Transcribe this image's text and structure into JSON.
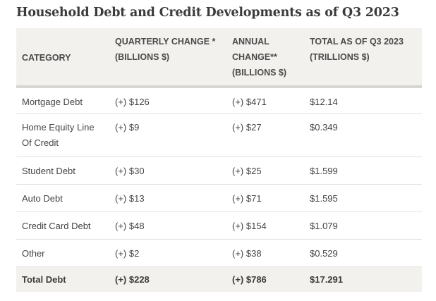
{
  "title": "Household Debt and Credit Developments as of Q3 2023",
  "headers": {
    "category": "CATEGORY",
    "quarterly_line1": "QUARTERLY CHANGE *",
    "quarterly_line2": "(BILLIONS $)",
    "annual_line1": "ANNUAL",
    "annual_line2": "CHANGE**",
    "annual_line3": "(BILLIONS $)",
    "total_line1": "TOTAL AS OF Q3 2023",
    "total_line2": "(TRILLIONS $)"
  },
  "rows": [
    {
      "category_line1": "Mortgage Debt",
      "category_line2": "",
      "quarterly": "(+) $126",
      "annual": "(+) $471",
      "total": "$12.14"
    },
    {
      "category_line1": "Home Equity Line",
      "category_line2": "Of Credit",
      "quarterly": "(+) $9",
      "annual": "(+) $27",
      "total": "$0.349"
    },
    {
      "category_line1": "Student Debt",
      "category_line2": "",
      "quarterly": "(+) $30",
      "annual": "(+) $25",
      "total": "$1.599"
    },
    {
      "category_line1": "Auto Debt",
      "category_line2": "",
      "quarterly": "(+) $13",
      "annual": "(+) $71",
      "total": "$1.595"
    },
    {
      "category_line1": "Credit Card Debt",
      "category_line2": "",
      "quarterly": "(+) $48",
      "annual": "(+) $154",
      "total": "$1.079"
    },
    {
      "category_line1": "Other",
      "category_line2": "",
      "quarterly": "(+) $2",
      "annual": "(+) $38",
      "total": "$0.529"
    }
  ],
  "total_row": {
    "category": "Total Debt",
    "quarterly": "(+) $228",
    "annual": "(+) $786",
    "total": "$17.291"
  }
}
